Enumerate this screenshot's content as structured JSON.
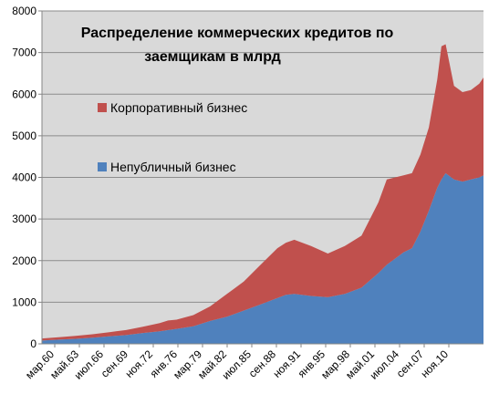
{
  "chart_data": {
    "type": "area",
    "stacked": true,
    "title_lines": [
      "Распределение коммерческих кредитов по",
      "заемщикам в млрд"
    ],
    "xlabel": "",
    "ylabel": "",
    "ylim": [
      0,
      8000
    ],
    "yticks": [
      0,
      1000,
      2000,
      3000,
      4000,
      5000,
      6000,
      7000,
      8000
    ],
    "grid": true,
    "legend_position": "inside-left",
    "x_tick_labels": [
      "мар.60",
      "май.63",
      "июл.66",
      "сен.69",
      "ноя.72",
      "янв.76",
      "мар.79",
      "май.82",
      "июл.85",
      "сен.88",
      "ноя.91",
      "янв.95",
      "мар.98",
      "май.01",
      "июл.04",
      "сен.07",
      "ноя.10"
    ],
    "x": [
      "1960",
      "1962",
      "1964",
      "1966",
      "1968",
      "1970",
      "1972",
      "1974",
      "1975",
      "1976",
      "1978",
      "1980",
      "1982",
      "1984",
      "1986",
      "1988",
      "1989",
      "1990",
      "1992",
      "1994",
      "1996",
      "1998",
      "2000",
      "2001",
      "2002",
      "2003",
      "2004",
      "2005",
      "2006",
      "2007",
      "2007.5",
      "2008",
      "2009",
      "2010",
      "2011",
      "2012",
      "2012.5"
    ],
    "series": [
      {
        "name": "Непубличный бизнес",
        "color": "#4f81bd",
        "values": [
          80,
          100,
          120,
          150,
          180,
          210,
          260,
          300,
          330,
          360,
          420,
          550,
          650,
          800,
          950,
          1100,
          1180,
          1200,
          1150,
          1120,
          1200,
          1350,
          1700,
          1900,
          2050,
          2200,
          2300,
          2700,
          3200,
          3750,
          3950,
          4100,
          3950,
          3900,
          3950,
          4000,
          4050
        ]
      },
      {
        "name": "Корпоративный бизнес",
        "color": "#c0504d",
        "values": [
          50,
          60,
          70,
          80,
          100,
          120,
          150,
          200,
          230,
          220,
          270,
          350,
          550,
          700,
          950,
          1200,
          1250,
          1300,
          1200,
          1050,
          1150,
          1250,
          1700,
          2050,
          1950,
          1850,
          1800,
          1850,
          2000,
          2600,
          3200,
          3100,
          2250,
          2150,
          2150,
          2250,
          2350
        ]
      }
    ]
  }
}
